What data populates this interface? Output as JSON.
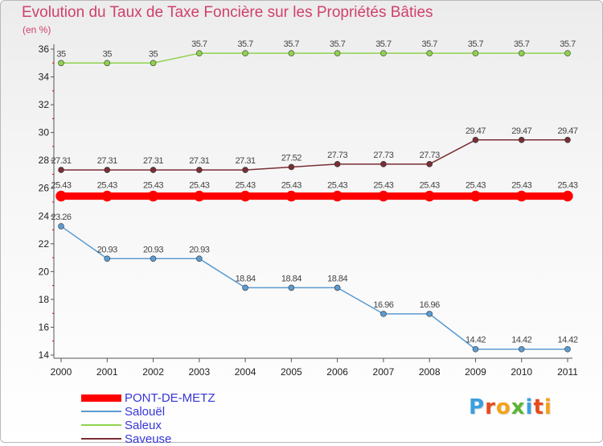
{
  "title": "Evolution du Taux de Taxe Foncière sur les Propriétés Bâties",
  "unit_label": "(en %)",
  "logo": {
    "text": "Proxiti",
    "letter_colors": [
      "#3aa0e0",
      "#e84a1b",
      "#f7a11a",
      "#5cb531",
      "#3aa0e0",
      "#e84a1b",
      "#f7a11a"
    ]
  },
  "chart_data": {
    "type": "line",
    "title": "Evolution du Taux de Taxe Foncière sur les Propriétés Bâties",
    "ylabel": "(en %)",
    "xlabel": "",
    "ylim": [
      14,
      36
    ],
    "yticks": [
      14,
      16,
      18,
      20,
      22,
      24,
      26,
      28,
      30,
      32,
      34,
      36
    ],
    "x": [
      "2000",
      "2001",
      "2002",
      "2003",
      "2004",
      "2005",
      "2006",
      "2007",
      "2008",
      "2009",
      "2010",
      "2011"
    ],
    "grid": false,
    "legend_position": "bottom-left",
    "series": [
      {
        "name": "PONT-DE-METZ",
        "color": "#ff0000",
        "values": [
          25.43,
          25.43,
          25.43,
          25.43,
          25.43,
          25.43,
          25.43,
          25.43,
          25.43,
          25.43,
          25.43,
          25.43
        ],
        "labels": [
          "25.43",
          "25.43",
          "25.43",
          "25.43",
          "25.43",
          "25.43",
          "25.43",
          "25.43",
          "25.43",
          "25.43",
          "25.43",
          "25.43"
        ]
      },
      {
        "name": "Salouël",
        "color": "#5b9bd1",
        "values": [
          23.26,
          20.93,
          20.93,
          20.93,
          18.84,
          18.84,
          18.84,
          16.96,
          16.96,
          14.42,
          14.42,
          14.42
        ],
        "labels": [
          "23.26",
          "20.93",
          "20.93",
          "20.93",
          "18.84",
          "18.84",
          "18.84",
          "16.96",
          "16.96",
          "14.42",
          "14.42",
          "14.42"
        ]
      },
      {
        "name": "Saleux",
        "color": "#8fd24f",
        "values": [
          35,
          35,
          35,
          35.7,
          35.7,
          35.7,
          35.7,
          35.7,
          35.7,
          35.7,
          35.7,
          35.7
        ],
        "labels": [
          "35",
          "35",
          "35",
          "35.7",
          "35.7",
          "35.7",
          "35.7",
          "35.7",
          "35.7",
          "35.7",
          "35.7",
          "35.7"
        ]
      },
      {
        "name": "Saveuse",
        "color": "#7a2e35",
        "values": [
          27.31,
          27.31,
          27.31,
          27.31,
          27.31,
          27.52,
          27.73,
          27.73,
          27.73,
          29.47,
          29.47,
          29.47
        ],
        "labels": [
          "27.31",
          "27.31",
          "27.31",
          "27.31",
          "27.31",
          "27.52",
          "27.73",
          "27.73",
          "27.73",
          "29.47",
          "29.47",
          "29.47"
        ]
      }
    ]
  }
}
